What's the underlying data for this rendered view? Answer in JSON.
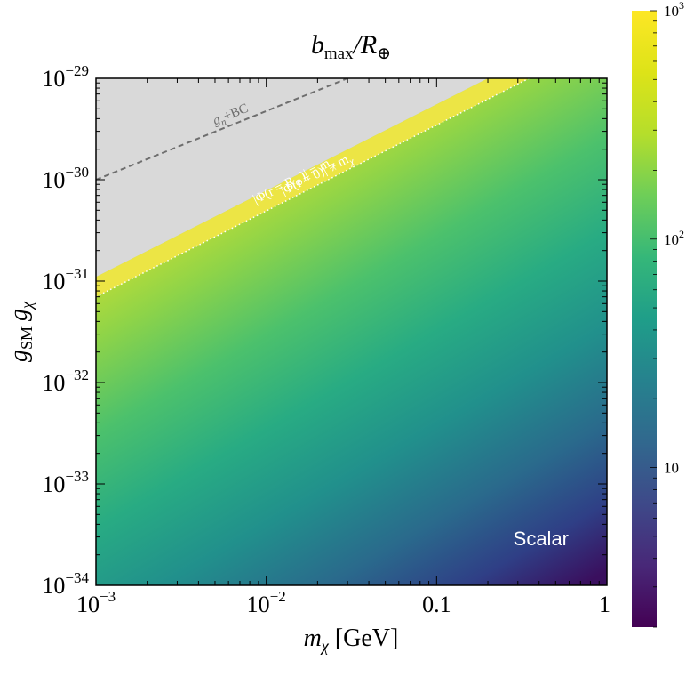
{
  "chart_data": {
    "type": "heatmap",
    "title": "b_max/R_⊕",
    "title_parts": {
      "base": "b",
      "sub": "max",
      "tail": "/R",
      "tail_sub": "⊕"
    },
    "xlabel": "m_χ [GeV]",
    "xlabel_parts": {
      "var": "m",
      "sub": "χ",
      "unit": " [GeV]"
    },
    "ylabel": "g_SM g_χ",
    "ylabel_parts": {
      "g1": "g",
      "s1": "SM",
      "g2": "g",
      "s2": "χ"
    },
    "x_scale": "log",
    "y_scale": "log",
    "xlim": [
      0.001,
      1
    ],
    "ylim": [
      1e-34,
      1e-29
    ],
    "x_ticks": [
      {
        "value": 0.001,
        "base": "10",
        "exp": "−3"
      },
      {
        "value": 0.01,
        "base": "10",
        "exp": "−2"
      },
      {
        "value": 0.1,
        "base": "0.1",
        "exp": ""
      },
      {
        "value": 1,
        "base": "1",
        "exp": ""
      }
    ],
    "y_ticks": [
      {
        "value": 1e-29,
        "base": "10",
        "exp": "−29"
      },
      {
        "value": 1e-30,
        "base": "10",
        "exp": "−30"
      },
      {
        "value": 1e-31,
        "base": "10",
        "exp": "−31"
      },
      {
        "value": 1e-32,
        "base": "10",
        "exp": "−32"
      },
      {
        "value": 1e-33,
        "base": "10",
        "exp": "−33"
      },
      {
        "value": 1e-34,
        "base": "10",
        "exp": "−34"
      }
    ],
    "colorbar": {
      "scale": "log",
      "range": [
        2,
        1000
      ],
      "colormap": "viridis",
      "ticks": [
        {
          "value": 10,
          "base": "10",
          "exp": ""
        },
        {
          "value": 100,
          "base": "10",
          "exp": "2"
        },
        {
          "value": 1000,
          "base": "10",
          "exp": "3"
        }
      ]
    },
    "excluded_region": {
      "color": "#d9d9d9",
      "boundary": [
        [
          0.001,
          1.1e-31
        ],
        [
          0.2,
          1e-29
        ]
      ]
    },
    "saturated_band": {
      "color": "#f0e442",
      "lower_boundary": [
        [
          0.001,
          7e-32
        ],
        [
          0.35,
          1e-29
        ]
      ]
    },
    "lines": [
      {
        "name": "g_n+BC",
        "parts": {
          "g": "g",
          "sub": "n",
          "tail": "+BC"
        },
        "style": "dashed",
        "color": "#6e6e6e",
        "points": [
          [
            0.001,
            1e-30
          ],
          [
            0.03,
            1e-29
          ]
        ]
      },
      {
        "name": "|Φ(r = R_⊕)| = m_χ",
        "parts": {
          "pre": "|Φ(r = R",
          "sub1": "⊕",
          "mid": ")| = m",
          "sub2": "χ"
        },
        "style": "none",
        "color": "#ffffff",
        "points": []
      },
      {
        "name": "|Φ(r = 0)| = m_χ",
        "parts": {
          "pre": "|Φ(r = 0)| = m",
          "sub": "χ"
        },
        "style": "dotted",
        "color": "#ffffff",
        "points": [
          [
            0.001,
            7e-32
          ],
          [
            0.35,
            1e-29
          ]
        ]
      }
    ],
    "annotation": "Scalar",
    "grid": false
  }
}
